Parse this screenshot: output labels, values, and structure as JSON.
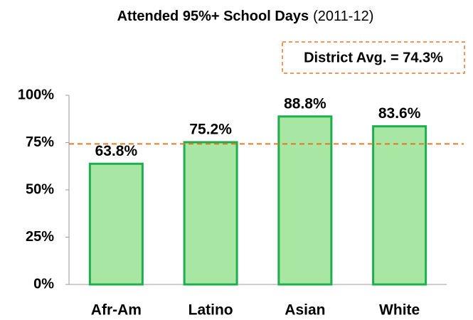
{
  "chart_data": {
    "type": "bar",
    "title": "Attended 95%+ School Days",
    "subtitle": "(2011-12)",
    "categories": [
      "Afr-Am",
      "Latino",
      "Asian",
      "White"
    ],
    "values": [
      63.8,
      75.2,
      88.8,
      83.6
    ],
    "value_labels": [
      "63.8%",
      "75.2%",
      "88.8%",
      "83.6%"
    ],
    "color": "#a8e6a3",
    "edge_color": "#1fae4e",
    "ylim": [
      0,
      100
    ],
    "yticks": [
      {
        "value": 0,
        "label": "0%"
      },
      {
        "value": 25,
        "label": "25%"
      },
      {
        "value": 50,
        "label": "50%"
      },
      {
        "value": 75,
        "label": "75%"
      },
      {
        "value": 100,
        "label": "100%"
      }
    ],
    "grid": false,
    "reference_line": {
      "value": 74.3,
      "label": "District Avg. = 74.3%",
      "color": "#e87722"
    }
  }
}
